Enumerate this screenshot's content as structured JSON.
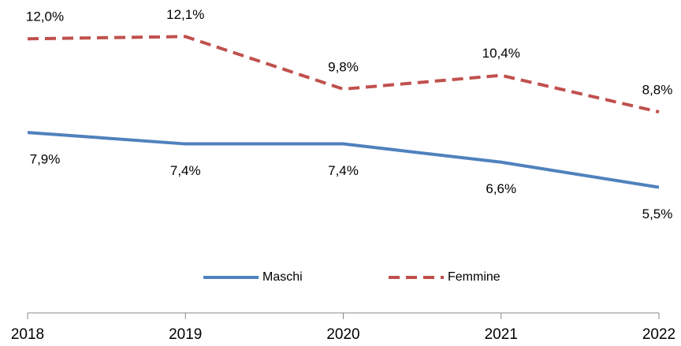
{
  "chart_data": {
    "type": "line",
    "categories": [
      "2018",
      "2019",
      "2020",
      "2021",
      "2022"
    ],
    "series": [
      {
        "name": "Maschi",
        "color": "#4f81bd",
        "dash": false,
        "label_position": "below",
        "values": [
          7.9,
          7.4,
          7.4,
          6.6,
          5.5
        ],
        "value_labels": [
          "7,9%",
          "7,4%",
          "7,4%",
          "6,6%",
          "5,5%"
        ]
      },
      {
        "name": "Femmine",
        "color": "#c0504d",
        "dash": true,
        "label_position": "above",
        "values": [
          12.0,
          12.1,
          9.8,
          10.4,
          8.8
        ],
        "value_labels": [
          "12,0%",
          "12,1%",
          "9,8%",
          "10,4%",
          "8,8%"
        ]
      }
    ],
    "ylim": [
      0,
      13.7
    ],
    "legend": "bottom"
  }
}
